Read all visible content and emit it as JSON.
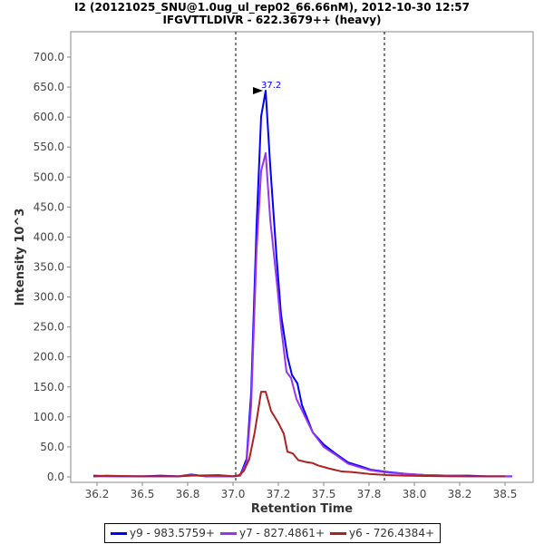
{
  "chart_data": {
    "type": "line",
    "title": "I2 (20121025_SNU@1.0ug_ul_rep02_66.66nM), 2012-10-30 12:57",
    "subtitle": "IFGVTTLDIVR - 622.3679++ (heavy)",
    "xlabel": "Retention Time",
    "ylabel": "Intensity 10^3",
    "xlim": [
      36.1,
      38.65
    ],
    "ylim": [
      -10,
      745
    ],
    "xticks": [
      36.25,
      36.5,
      36.75,
      37.0,
      37.25,
      37.5,
      37.75,
      38.0,
      38.25,
      38.5
    ],
    "xtick_labels": [
      "36.2",
      "36.5",
      "36.8",
      "37.0",
      "37.2",
      "37.5",
      "37.8",
      "38.0",
      "38.2",
      "38.5"
    ],
    "yticks": [
      0,
      50,
      100,
      150,
      200,
      250,
      300,
      350,
      400,
      450,
      500,
      550,
      600,
      650,
      700
    ],
    "ytick_labels": [
      "0.0",
      "50.0",
      "100.0",
      "150.0",
      "200.0",
      "250.0",
      "300.0",
      "350.0",
      "400.0",
      "450.0",
      "500.0",
      "550.0",
      "600.0",
      "650.0",
      "700.0"
    ],
    "integration_bounds": [
      37.015,
      37.835
    ],
    "peak_annotation": {
      "label": "37.2",
      "x": 37.18,
      "y": 644
    },
    "legend_position": "bottom",
    "series": [
      {
        "name": "y9 - 983.5759+",
        "color": "#0000ff",
        "points": [
          [
            36.23,
            2
          ],
          [
            36.35,
            1
          ],
          [
            36.5,
            1
          ],
          [
            36.6,
            2
          ],
          [
            36.7,
            1
          ],
          [
            36.77,
            4
          ],
          [
            36.85,
            1
          ],
          [
            36.95,
            1
          ],
          [
            37.0,
            1
          ],
          [
            37.04,
            3
          ],
          [
            37.075,
            30
          ],
          [
            37.1,
            140
          ],
          [
            37.13,
            420
          ],
          [
            37.155,
            601
          ],
          [
            37.18,
            644
          ],
          [
            37.205,
            520
          ],
          [
            37.24,
            367
          ],
          [
            37.265,
            270
          ],
          [
            37.3,
            201
          ],
          [
            37.325,
            170
          ],
          [
            37.355,
            156
          ],
          [
            37.38,
            120
          ],
          [
            37.44,
            74
          ],
          [
            37.5,
            54
          ],
          [
            37.56,
            40
          ],
          [
            37.635,
            24
          ],
          [
            37.7,
            18
          ],
          [
            37.76,
            12
          ],
          [
            37.86,
            8
          ],
          [
            37.96,
            5
          ],
          [
            38.06,
            3
          ],
          [
            38.2,
            2
          ],
          [
            38.3,
            2
          ],
          [
            38.4,
            1
          ],
          [
            38.54,
            1
          ]
        ]
      },
      {
        "name": "y7 - 827.4861+",
        "color": "#9933ee",
        "points": [
          [
            36.23,
            1
          ],
          [
            36.35,
            1
          ],
          [
            36.5,
            1
          ],
          [
            36.6,
            1
          ],
          [
            36.7,
            1
          ],
          [
            36.77,
            3
          ],
          [
            36.85,
            1
          ],
          [
            36.95,
            1
          ],
          [
            37.0,
            1
          ],
          [
            37.04,
            2
          ],
          [
            37.075,
            25
          ],
          [
            37.1,
            120
          ],
          [
            37.13,
            380
          ],
          [
            37.155,
            510
          ],
          [
            37.18,
            540
          ],
          [
            37.205,
            430
          ],
          [
            37.245,
            315
          ],
          [
            37.265,
            250
          ],
          [
            37.295,
            175
          ],
          [
            37.32,
            165
          ],
          [
            37.35,
            130
          ],
          [
            37.39,
            105
          ],
          [
            37.44,
            74
          ],
          [
            37.5,
            50
          ],
          [
            37.56,
            38
          ],
          [
            37.635,
            22
          ],
          [
            37.7,
            16
          ],
          [
            37.76,
            11
          ],
          [
            37.86,
            7
          ],
          [
            37.96,
            5
          ],
          [
            38.06,
            3
          ],
          [
            38.2,
            2
          ],
          [
            38.3,
            1
          ],
          [
            38.4,
            1
          ],
          [
            38.54,
            1
          ]
        ]
      },
      {
        "name": "y6 - 726.4384+",
        "color": "#aa2222",
        "points": [
          [
            36.23,
            1
          ],
          [
            36.3,
            2
          ],
          [
            36.5,
            1
          ],
          [
            36.7,
            1
          ],
          [
            36.77,
            2
          ],
          [
            36.92,
            3
          ],
          [
            37.0,
            1
          ],
          [
            37.03,
            2
          ],
          [
            37.06,
            10
          ],
          [
            37.09,
            30
          ],
          [
            37.12,
            75
          ],
          [
            37.155,
            142
          ],
          [
            37.18,
            142
          ],
          [
            37.21,
            110
          ],
          [
            37.25,
            90
          ],
          [
            37.28,
            72
          ],
          [
            37.3,
            42
          ],
          [
            37.33,
            39
          ],
          [
            37.36,
            28
          ],
          [
            37.4,
            25
          ],
          [
            37.44,
            23
          ],
          [
            37.47,
            19
          ],
          [
            37.53,
            14
          ],
          [
            37.6,
            9
          ],
          [
            37.66,
            8
          ],
          [
            37.75,
            5
          ],
          [
            37.85,
            3
          ],
          [
            37.95,
            2
          ],
          [
            38.2,
            1
          ],
          [
            38.5,
            1
          ]
        ]
      }
    ]
  }
}
